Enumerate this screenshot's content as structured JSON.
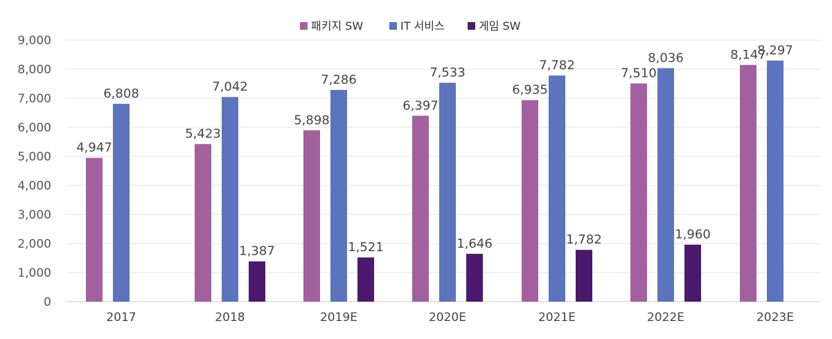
{
  "chart_data": {
    "type": "bar",
    "categories": [
      "2017",
      "2018",
      "2019E",
      "2020E",
      "2021E",
      "2022E",
      "2023E"
    ],
    "series": [
      {
        "name": "패키지 SW",
        "color": "#a3609f",
        "values": [
          4947,
          5423,
          5898,
          6397,
          6935,
          7510,
          8147
        ],
        "labels": [
          "4,947",
          "5,423",
          "5,898",
          "6,397",
          "6,935",
          "7,510",
          "8,147"
        ]
      },
      {
        "name": "IT 서비스",
        "color": "#5b74bd",
        "values": [
          6808,
          7042,
          7286,
          7533,
          7782,
          8036,
          8297
        ],
        "labels": [
          "6,808",
          "7,042",
          "7,286",
          "7,533",
          "7,782",
          "8,036",
          "8,297"
        ]
      },
      {
        "name": "게임 SW",
        "color": "#4b1a6e",
        "values": [
          null,
          1387,
          1521,
          1646,
          1782,
          1960,
          null
        ],
        "labels": [
          null,
          "1,387",
          "1,521",
          "1,646",
          "1,782",
          "1,960",
          null
        ]
      }
    ],
    "ylim": [
      0,
      9000
    ],
    "yticks": [
      0,
      1000,
      2000,
      3000,
      4000,
      5000,
      6000,
      7000,
      8000,
      9000
    ],
    "ytick_labels": [
      "0",
      "1,000",
      "2,000",
      "3,000",
      "4,000",
      "5,000",
      "6,000",
      "7,000",
      "8,000",
      "9,000"
    ],
    "grid": true,
    "legend_position": "top-center"
  }
}
